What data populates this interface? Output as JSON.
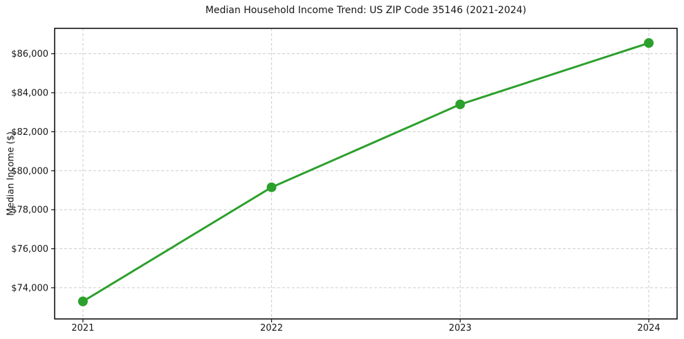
{
  "chart_data": {
    "type": "line",
    "title": "Median Household Income Trend: US ZIP Code 35146 (2021-2024)",
    "xlabel": "",
    "ylabel": "Median Income ($)",
    "x": [
      2021,
      2022,
      2023,
      2024
    ],
    "x_tick_labels": [
      "2021",
      "2022",
      "2023",
      "2024"
    ],
    "series": [
      {
        "name": "Median Household Income",
        "values": [
          73300,
          79150,
          83400,
          86550
        ]
      }
    ],
    "y_ticks": [
      74000,
      76000,
      78000,
      80000,
      82000,
      84000,
      86000
    ],
    "y_tick_labels": [
      "$74,000",
      "$76,000",
      "$78,000",
      "$80,000",
      "$82,000",
      "$84,000",
      "$86,000"
    ],
    "ylim": [
      72400,
      87300
    ],
    "xlim": [
      2020.85,
      2024.15
    ],
    "grid": true,
    "grid_style": "dashed",
    "legend_position": "none",
    "colors": {
      "line": "#2ca02c",
      "marker": "#2ca02c",
      "grid": "#cccccc",
      "spine": "#000000",
      "tick": "#111111",
      "text": "#151515",
      "background": "#ffffff"
    }
  }
}
